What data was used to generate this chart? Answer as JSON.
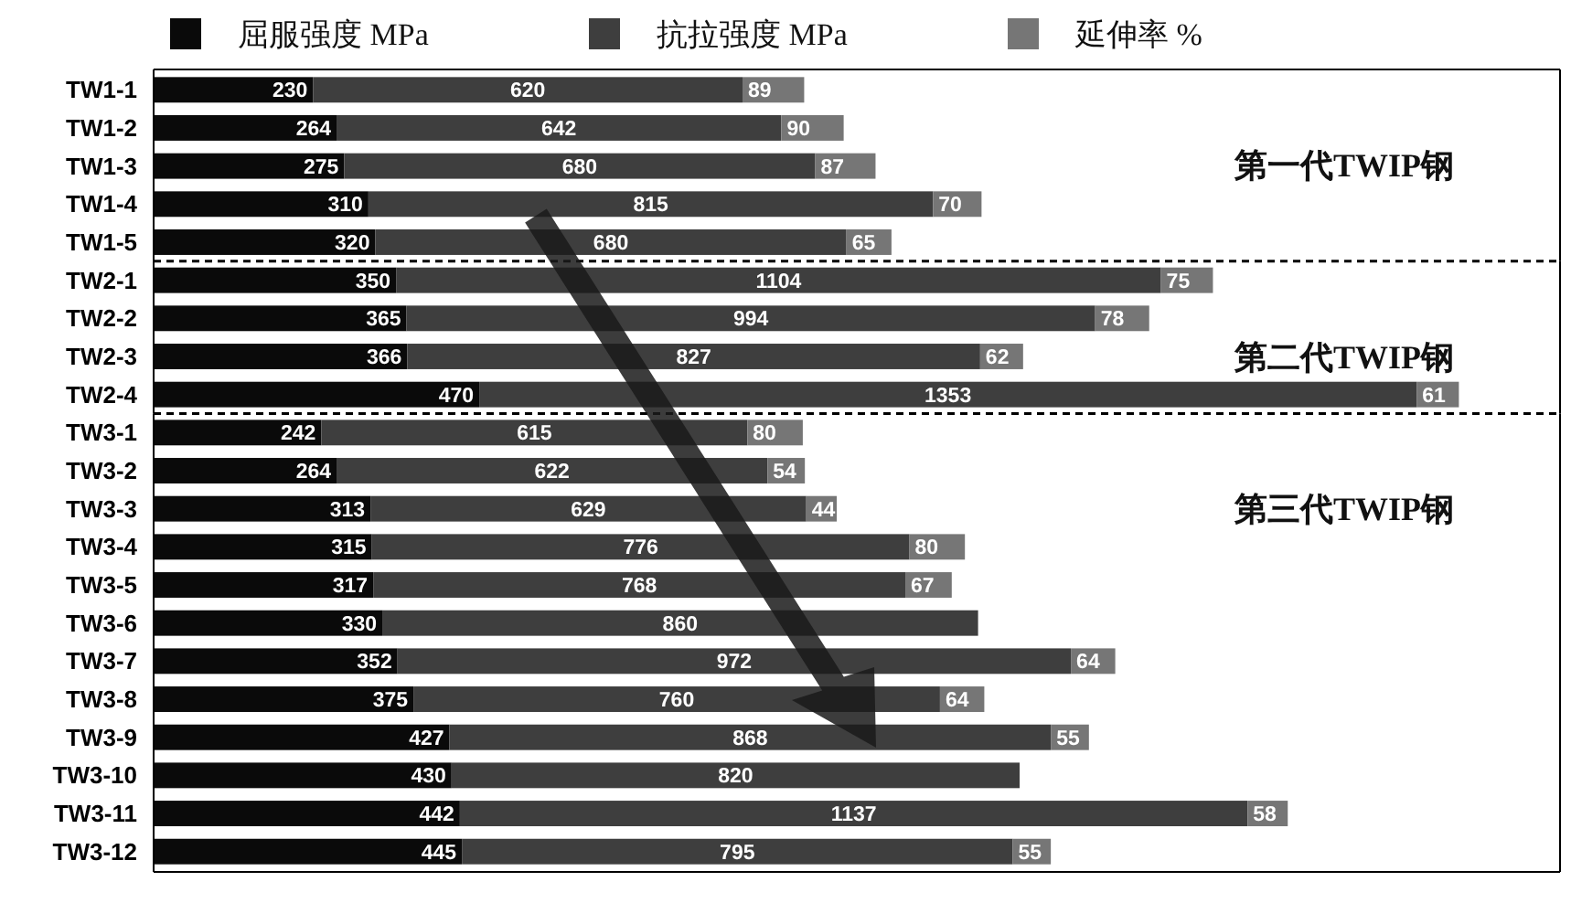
{
  "chart_data": [
    {
      "type": "bar",
      "orientation": "horizontal",
      "stacked": true,
      "categories": [
        "TW1-1",
        "TW1-2",
        "TW1-3",
        "TW1-4",
        "TW1-5"
      ],
      "series": [
        {
          "name": "屈服强度 MPa",
          "color": "#0a0a0a",
          "values": [
            230,
            264,
            275,
            310,
            320
          ]
        },
        {
          "name": "抗拉强度 MPa",
          "color": "#3e3e3e",
          "values": [
            620,
            642,
            680,
            815,
            680
          ]
        },
        {
          "name": "延伸率 %",
          "color": "#767676",
          "values": [
            89,
            90,
            87,
            70,
            65
          ]
        }
      ],
      "xlim": [
        0,
        2030
      ],
      "data_labels": true,
      "legend": "top",
      "tick_labels": "y",
      "annotations": [
        "第一代TWIP钢"
      ]
    },
    {
      "type": "bar",
      "orientation": "horizontal",
      "stacked": true,
      "categories": [
        "TW2-1",
        "TW2-2",
        "TW2-3",
        "TW2-4"
      ],
      "series": [
        {
          "color": "#0a0a0a",
          "values": [
            350,
            365,
            366,
            470
          ]
        },
        {
          "color": "#3e3e3e",
          "values": [
            1104,
            994,
            827,
            1353
          ]
        },
        {
          "color": "#767676",
          "values": [
            75,
            78,
            62,
            61
          ]
        }
      ],
      "xlim": [
        0,
        2030
      ],
      "data_labels": true,
      "tick_labels": "y",
      "annotations": [
        "第二代TWIP钢"
      ]
    },
    {
      "type": "bar",
      "orientation": "horizontal",
      "stacked": true,
      "categories": [
        "TW3-1",
        "TW3-2",
        "TW3-3",
        "TW3-4",
        "TW3-5",
        "TW3-6",
        "TW3-7",
        "TW3-8",
        "TW3-9",
        "TW3-10",
        "TW3-11",
        "TW3-12"
      ],
      "series": [
        {
          "color": "#0a0a0a",
          "values": [
            242,
            264,
            313,
            315,
            317,
            330,
            352,
            375,
            427,
            430,
            442,
            445
          ]
        },
        {
          "color": "#3e3e3e",
          "values": [
            615,
            622,
            629,
            776,
            768,
            860,
            972,
            760,
            868,
            820,
            1137,
            795
          ]
        },
        {
          "color": "#767676",
          "values": [
            80,
            54,
            44,
            80,
            67,
            null,
            64,
            64,
            55,
            null,
            58,
            55
          ]
        }
      ],
      "xlim": [
        0,
        2030
      ],
      "data_labels": true,
      "tick_labels": "y",
      "annotations": [
        "第三代TWIP钢"
      ]
    }
  ]
}
